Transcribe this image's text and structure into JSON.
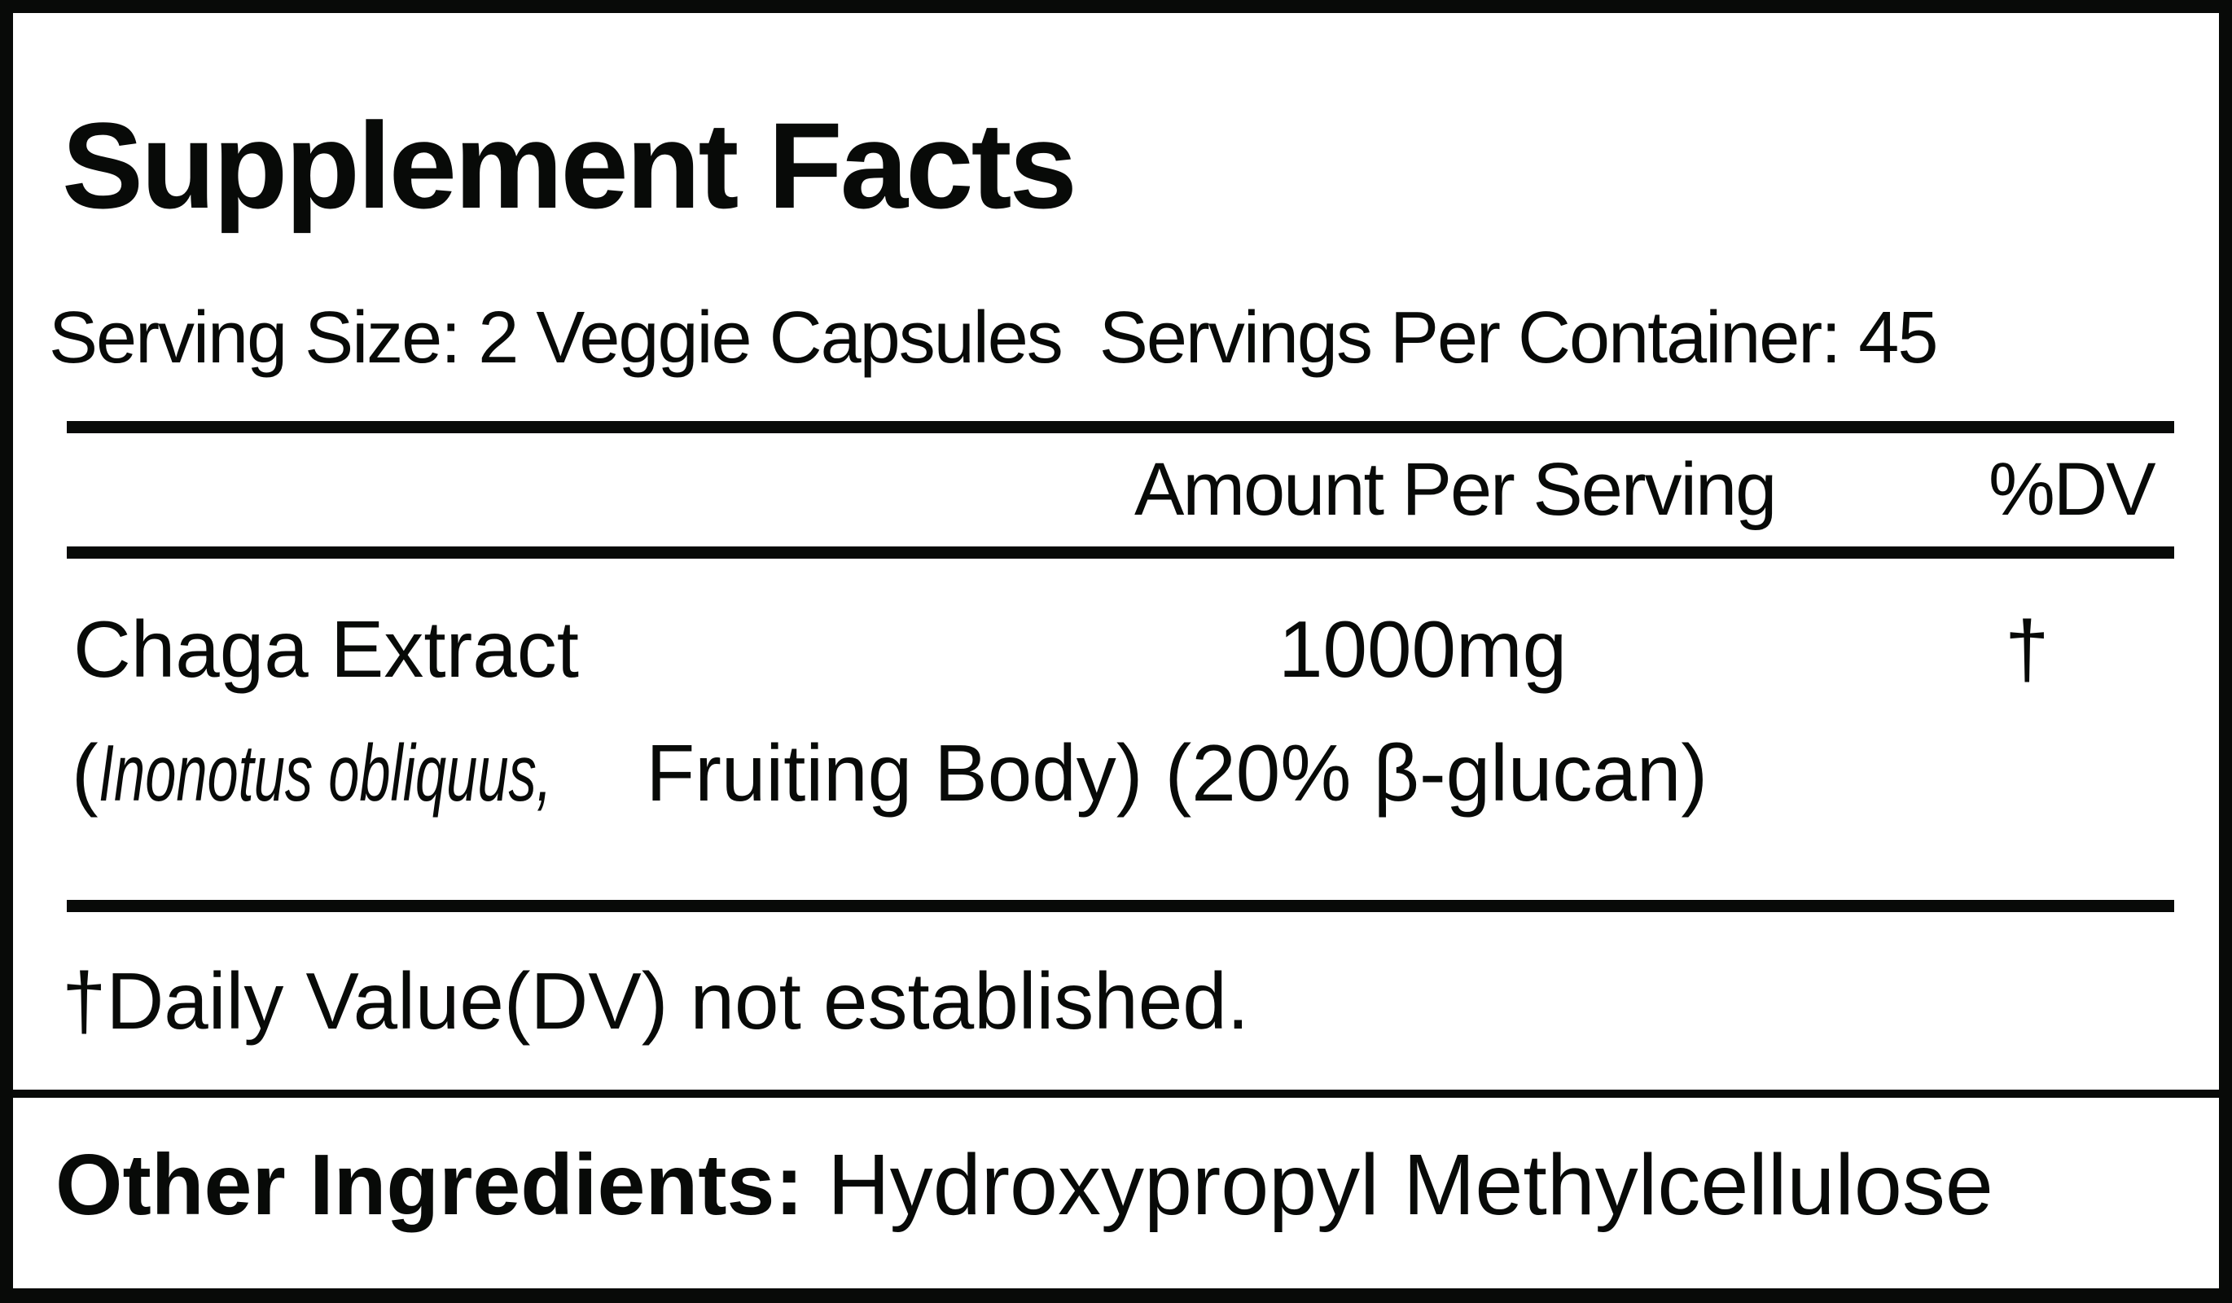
{
  "title": "Supplement Facts",
  "serving_size": "Serving Size: 2 Veggie Capsules",
  "servings_per_container": "Servings Per Container: 45",
  "header": {
    "amount": "Amount Per Serving",
    "dv": "%DV"
  },
  "ingredients": [
    {
      "name": "Chaga Extract",
      "amount": "1000mg",
      "dv": "†",
      "detail_open": "(",
      "latin_name": "Inonotus obliquus,",
      "detail": " Fruiting Body) (20% β-glucan)"
    }
  ],
  "footnote": "†Daily Value(DV) not established.",
  "other_ingredients": {
    "label": "Other Ingredients:",
    "value": " Hydroxypropyl Methylcellulose"
  }
}
